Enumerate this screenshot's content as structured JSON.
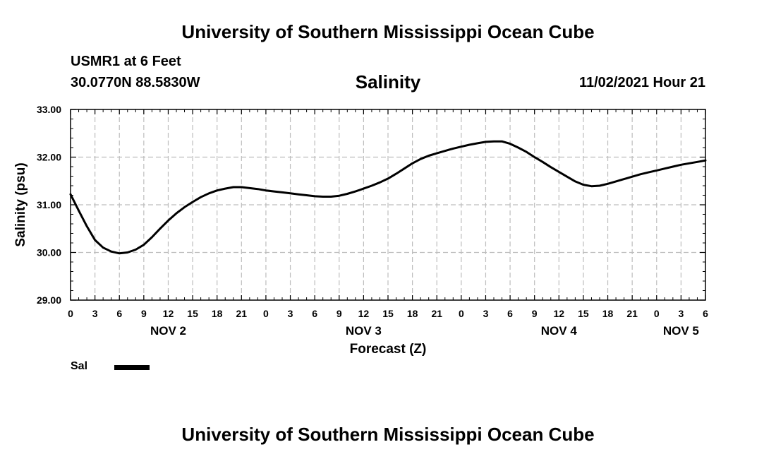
{
  "page": {
    "title_top": "University of Southern Mississippi Ocean Cube",
    "title_bottom": "University of Southern Mississippi Ocean Cube",
    "station": "USMR1 at 6 Feet",
    "coordinates": "30.0770N  88.5830W",
    "chart_title": "Salinity",
    "timestamp": "11/02/2021 Hour 21"
  },
  "legend": {
    "label": "Sal",
    "color": "#000000"
  },
  "chart_data": {
    "type": "line",
    "title": "Salinity",
    "xlabel": "Forecast (Z)",
    "ylabel": "Salinity (psu)",
    "ylim": [
      29,
      33
    ],
    "xlim": [
      0,
      78
    ],
    "grid": true,
    "y_ticks": [
      29,
      30,
      31,
      32,
      33
    ],
    "y_tick_labels": [
      "29.00",
      "30.00",
      "31.00",
      "32.00",
      "33.00"
    ],
    "x_ticks": [
      0,
      3,
      6,
      9,
      12,
      15,
      18,
      21,
      24,
      27,
      30,
      33,
      36,
      39,
      42,
      45,
      48,
      51,
      54,
      57,
      60,
      63,
      66,
      69,
      72,
      75,
      78
    ],
    "x_tick_labels": [
      "0",
      "3",
      "6",
      "9",
      "12",
      "15",
      "18",
      "21",
      "0",
      "3",
      "6",
      "9",
      "12",
      "15",
      "18",
      "21",
      "0",
      "3",
      "6",
      "9",
      "12",
      "15",
      "18",
      "21",
      "0",
      "3",
      "6"
    ],
    "day_labels": [
      {
        "x": 12,
        "label": "NOV 2"
      },
      {
        "x": 36,
        "label": "NOV 3"
      },
      {
        "x": 60,
        "label": "NOV 4"
      },
      {
        "x": 75,
        "label": "NOV 5"
      }
    ],
    "series": [
      {
        "name": "Sal",
        "color": "#000000",
        "x": [
          0,
          1,
          2,
          3,
          4,
          5,
          6,
          7,
          8,
          9,
          10,
          11,
          12,
          13,
          14,
          15,
          16,
          17,
          18,
          19,
          20,
          21,
          22,
          23,
          24,
          25,
          26,
          27,
          28,
          29,
          30,
          31,
          32,
          33,
          34,
          35,
          36,
          37,
          38,
          39,
          40,
          41,
          42,
          43,
          44,
          45,
          46,
          47,
          48,
          49,
          50,
          51,
          52,
          53,
          54,
          55,
          56,
          57,
          58,
          59,
          60,
          61,
          62,
          63,
          64,
          65,
          66,
          67,
          68,
          69,
          70,
          71,
          72,
          73,
          74,
          75,
          76,
          77,
          78
        ],
        "values": [
          31.22,
          30.88,
          30.55,
          30.26,
          30.1,
          30.02,
          29.98,
          30.0,
          30.06,
          30.16,
          30.32,
          30.5,
          30.67,
          30.82,
          30.95,
          31.06,
          31.16,
          31.24,
          31.3,
          31.34,
          31.37,
          31.37,
          31.35,
          31.33,
          31.3,
          31.28,
          31.26,
          31.24,
          31.22,
          31.2,
          31.18,
          31.17,
          31.17,
          31.19,
          31.23,
          31.28,
          31.34,
          31.4,
          31.47,
          31.55,
          31.65,
          31.76,
          31.87,
          31.96,
          32.03,
          32.08,
          32.13,
          32.18,
          32.22,
          32.26,
          32.29,
          32.32,
          32.33,
          32.33,
          32.28,
          32.2,
          32.11,
          32.0,
          31.9,
          31.79,
          31.69,
          31.59,
          31.49,
          31.42,
          31.39,
          31.4,
          31.44,
          31.49,
          31.54,
          31.59,
          31.64,
          31.68,
          31.72,
          31.76,
          31.8,
          31.84,
          31.87,
          31.9,
          31.93
        ]
      }
    ]
  }
}
